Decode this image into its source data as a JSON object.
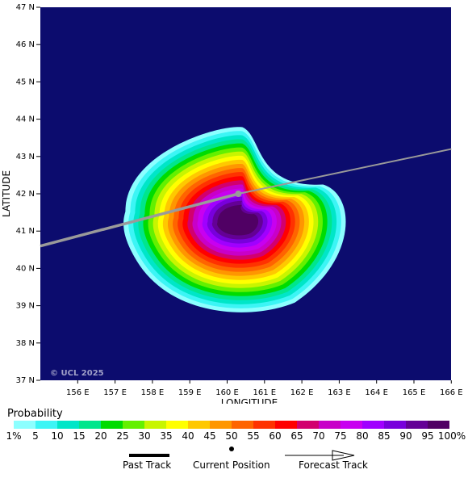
{
  "map": {
    "lon_ticks": [
      "156 E",
      "157 E",
      "158 E",
      "159 E",
      "160 E",
      "161 E",
      "162 E",
      "163 E",
      "164 E",
      "165 E",
      "166 E"
    ],
    "lat_ticks": [
      "47 N",
      "46 N",
      "45 N",
      "44 N",
      "43 N",
      "42 N",
      "41 N",
      "40 N",
      "39 N",
      "38 N",
      "37 N"
    ],
    "x_axis_title": "LONGITUDE",
    "y_axis_title": "LATITUDE",
    "copyright": "© UCL 2025",
    "background_color": "#0c0c6e",
    "track_color": "#9a9a9a",
    "current_position": {
      "lon": 160.3,
      "lat": 42.0
    },
    "track_points": [
      {
        "lon": 155.0,
        "lat": 40.6
      },
      {
        "lon": 160.3,
        "lat": 42.0
      },
      {
        "lon": 166.0,
        "lat": 43.2
      }
    ]
  },
  "legend": {
    "title": "Probability",
    "labels": [
      "1%",
      "5",
      "10",
      "15",
      "20",
      "25",
      "30",
      "35",
      "40",
      "45",
      "50",
      "55",
      "60",
      "65",
      "70",
      "75",
      "80",
      "85",
      "90",
      "95",
      "100%"
    ],
    "colors": [
      "#8cffff",
      "#3cf5f5",
      "#00e6c8",
      "#00e68c",
      "#00dc00",
      "#64f000",
      "#c8f500",
      "#ffff00",
      "#ffc800",
      "#ff9600",
      "#ff6400",
      "#ff3200",
      "#ff0000",
      "#d2006e",
      "#c800c8",
      "#c800f0",
      "#a000ff",
      "#7800dc",
      "#640096",
      "#500064"
    ]
  },
  "key": {
    "past_track": "Past Track",
    "current_position": "Current Position",
    "forecast_track": "Forecast Track"
  }
}
